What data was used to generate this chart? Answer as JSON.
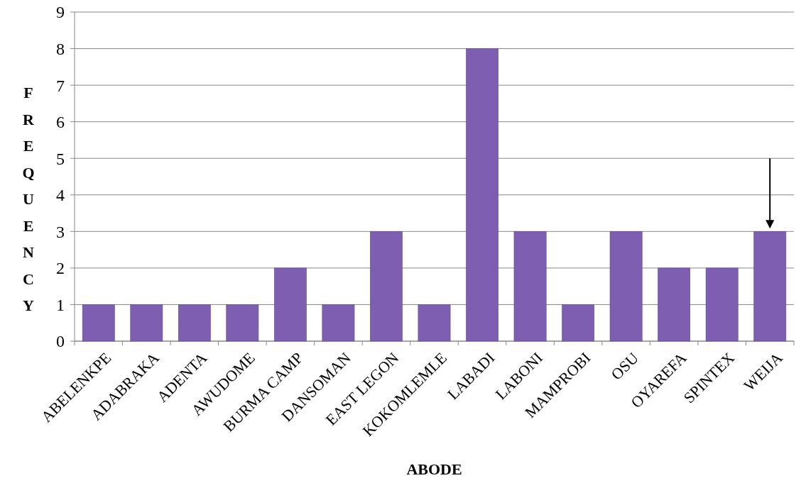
{
  "chart_data": {
    "type": "bar",
    "xlabel": "ABODE",
    "ylabel": "FREQUENCY",
    "categories": [
      "ABELENKPE",
      "ADABRAKA",
      "ADENTA",
      "AWUDOME",
      "BURMA CAMP",
      "DANSOMAN",
      "EAST LEGON",
      "KOKOMLEMLE",
      "LABADI",
      "LABONI",
      "MAMPROBI",
      "OSU",
      "OYAREFA",
      "SPINTEX",
      "WEIJA"
    ],
    "values": [
      1,
      1,
      1,
      1,
      2,
      1,
      3,
      1,
      8,
      3,
      1,
      3,
      2,
      2,
      3
    ],
    "color": "#7e5eb0",
    "ylim": [
      0,
      9
    ],
    "yticks": [
      0,
      1,
      2,
      3,
      4,
      5,
      6,
      7,
      8,
      9
    ],
    "grid": "y"
  }
}
